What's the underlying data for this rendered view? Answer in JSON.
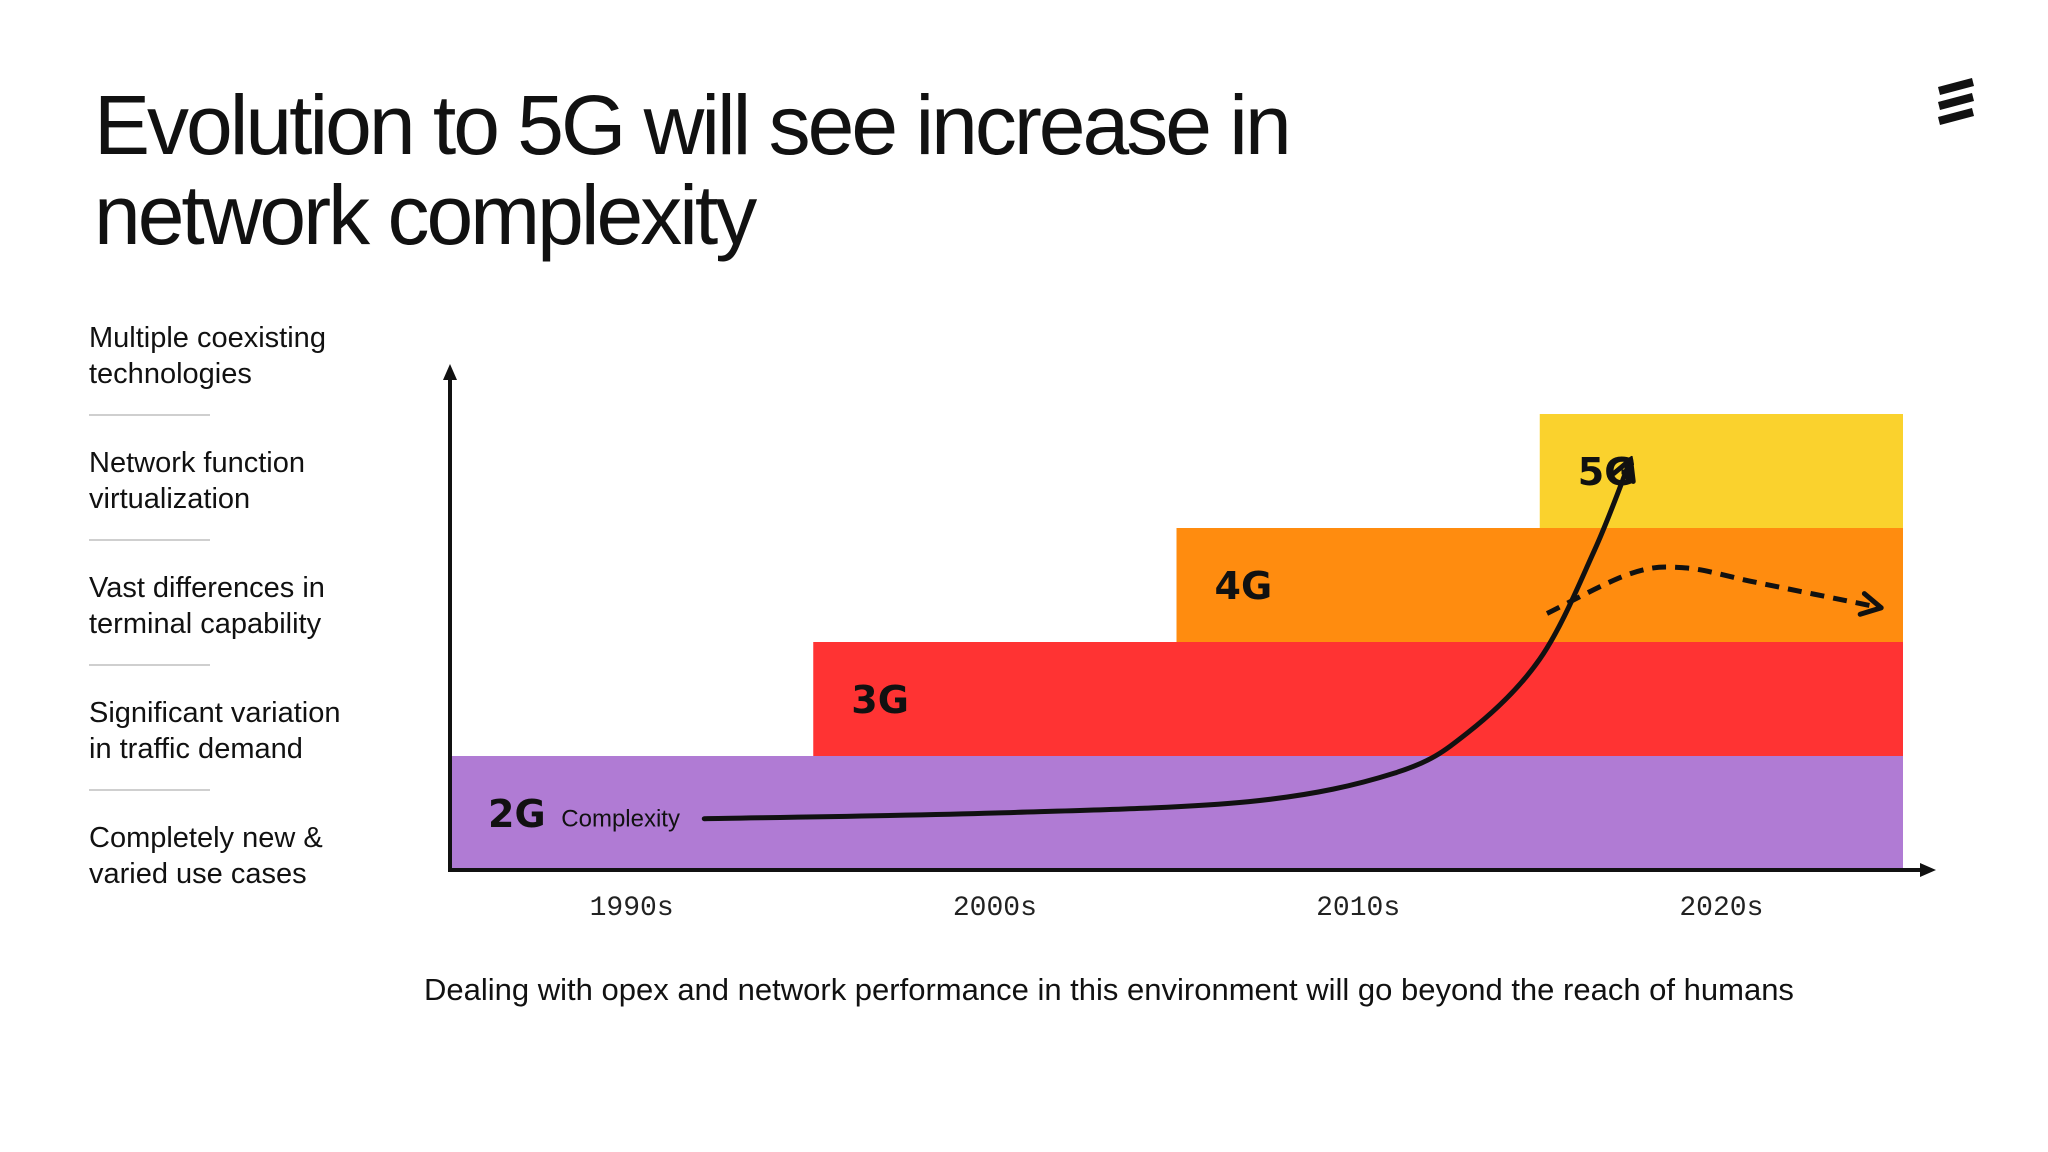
{
  "title": {
    "line1": "Evolution to 5G will see increase in",
    "line2": "network complexity"
  },
  "factors": [
    {
      "line1": "Multiple coexisting",
      "line2": "technologies"
    },
    {
      "line1": "Network function",
      "line2": "virtualization"
    },
    {
      "line1": "Vast differences in",
      "line2": "terminal capability"
    },
    {
      "line1": "Significant variation",
      "line2": "in traffic demand"
    },
    {
      "line1": "Completely new &",
      "line2": "varied use cases"
    }
  ],
  "caption": "Dealing with opex and network performance in this environment will go beyond the reach of humans",
  "chart_data": {
    "type": "area",
    "xlabel": "",
    "ylabel": "",
    "categories": [
      "1990s",
      "2000s",
      "2010s",
      "2020s"
    ],
    "x_range": [
      1990,
      2030
    ],
    "y_range": [
      0,
      4.5
    ],
    "layers": [
      {
        "name": "2G",
        "start": 1990,
        "end": 2030,
        "level": 1,
        "color": "#b07bd4"
      },
      {
        "name": "3G",
        "start": 2000,
        "end": 2030,
        "level": 2,
        "color": "#ff3333"
      },
      {
        "name": "4G",
        "start": 2010,
        "end": 2030,
        "level": 3,
        "color": "#ff8c0f"
      },
      {
        "name": "5G",
        "start": 2020,
        "end": 2030,
        "level": 4,
        "color": "#fad22d"
      }
    ],
    "curve": {
      "label": "Complexity",
      "points": [
        [
          1997,
          0.45
        ],
        [
          2005,
          0.5
        ],
        [
          2012,
          0.6
        ],
        [
          2016,
          0.85
        ],
        [
          2018,
          1.2
        ],
        [
          2020,
          1.85
        ],
        [
          2021.5,
          2.8
        ],
        [
          2022.5,
          3.6
        ]
      ]
    },
    "dashed_curve": {
      "points": [
        [
          2020.2,
          2.25
        ],
        [
          2022.5,
          2.6
        ],
        [
          2024,
          2.65
        ],
        [
          2026,
          2.52
        ],
        [
          2029.4,
          2.3
        ]
      ]
    }
  }
}
